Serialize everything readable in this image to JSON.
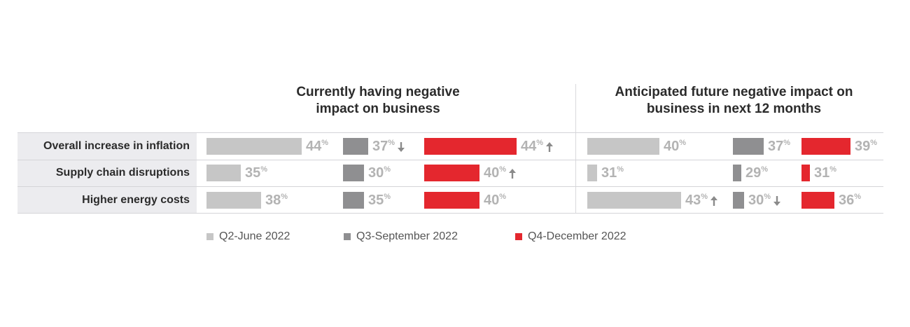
{
  "colors": {
    "q2": "#c6c6c6",
    "q3": "#8f8f91",
    "q4": "#e4272e",
    "value_text": "#b3b3b3",
    "arrow": "#8a8a8a"
  },
  "panels": {
    "current": {
      "title_line1": "Currently having negative",
      "title_line2": "impact on business"
    },
    "future": {
      "title_line1": "Anticipated future negative impact on",
      "title_line2": "business in next 12 months"
    }
  },
  "rows": [
    {
      "label": "Overall increase in inflation"
    },
    {
      "label": "Supply chain disruptions"
    },
    {
      "label": "Higher energy costs"
    }
  ],
  "legend": [
    "Q2-June 2022",
    "Q3-September 2022",
    "Q4-December 2022"
  ],
  "chart_data": [
    {
      "type": "bar",
      "title": "Currently having negative impact on business",
      "categories": [
        "Overall increase in inflation",
        "Supply chain disruptions",
        "Higher energy costs"
      ],
      "series": [
        {
          "name": "Q2-June 2022",
          "values": [
            44,
            35,
            38
          ],
          "arrows": [
            "",
            "",
            ""
          ]
        },
        {
          "name": "Q3-September 2022",
          "values": [
            37,
            30,
            35
          ],
          "arrows": [
            "down",
            "",
            ""
          ]
        },
        {
          "name": "Q4-December 2022",
          "values": [
            44,
            40,
            40
          ],
          "arrows": [
            "up",
            "up",
            ""
          ]
        }
      ],
      "unit": "%"
    },
    {
      "type": "bar",
      "title": "Anticipated future negative impact on business in next 12 months",
      "categories": [
        "Overall increase in inflation",
        "Supply chain disruptions",
        "Higher energy costs"
      ],
      "series": [
        {
          "name": "Q2-June 2022",
          "values": [
            40,
            31,
            43
          ],
          "arrows": [
            "",
            "",
            "up"
          ]
        },
        {
          "name": "Q3-September 2022",
          "values": [
            37,
            29,
            30
          ],
          "arrows": [
            "",
            "",
            "down"
          ]
        },
        {
          "name": "Q4-December 2022",
          "values": [
            39,
            31,
            36
          ],
          "arrows": [
            "",
            "",
            ""
          ]
        }
      ],
      "unit": "%"
    }
  ]
}
